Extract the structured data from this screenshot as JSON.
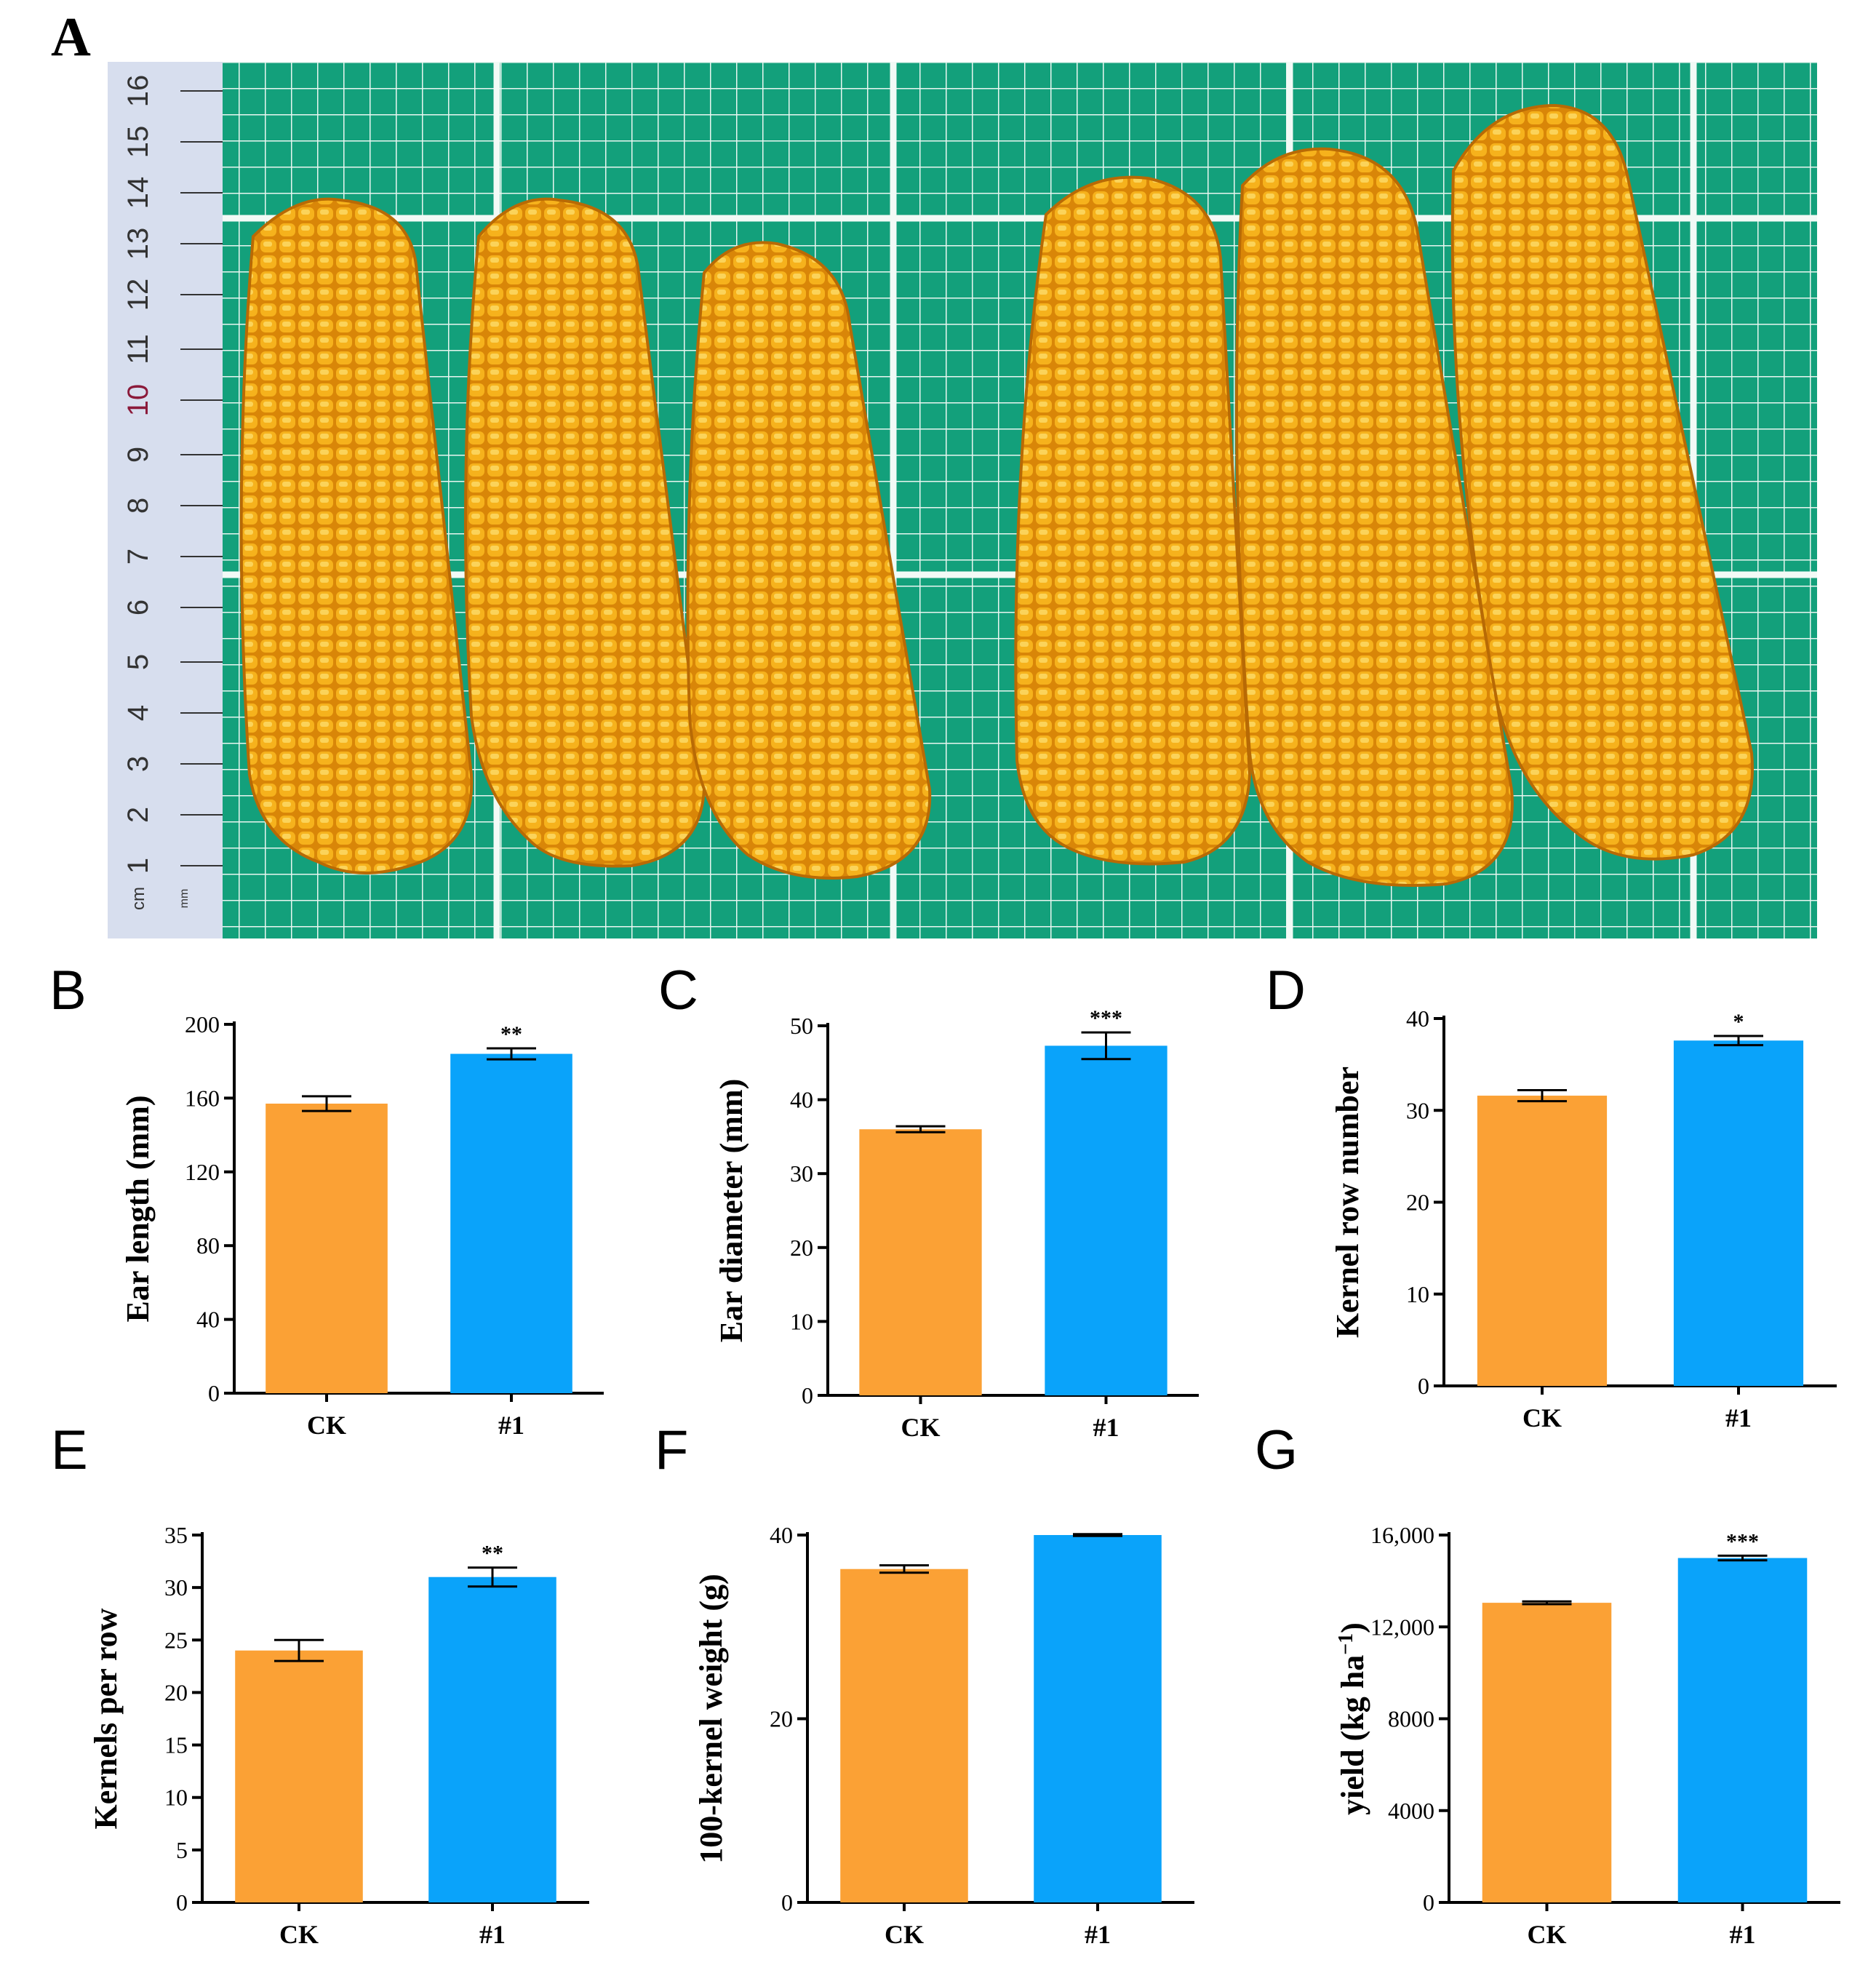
{
  "figure": {
    "panel_a": {
      "letter": "A",
      "photo_description_icon": "corn-ears-photo-icon",
      "ruler_numbers": [
        "1",
        "2",
        "3",
        "4",
        "5",
        "6",
        "7",
        "8",
        "9",
        "10",
        "11",
        "12",
        "13",
        "14",
        "15",
        "16"
      ],
      "ruler_unit_cm": "cm",
      "ruler_unit_mm": "mm"
    }
  },
  "colors": {
    "ck": "#FBA135",
    "line1": "#0AA3FA",
    "grid_bg": "#14A07A",
    "kernel": "#F2A416"
  },
  "chart_data": [
    {
      "panel": "B",
      "type": "bar",
      "categories": [
        "CK",
        "#1"
      ],
      "values": [
        157,
        184
      ],
      "errors": [
        4,
        3
      ],
      "ylabel": "Ear length (mm)",
      "ylim": [
        0,
        200
      ],
      "yticks": [
        "0",
        "40",
        "80",
        "120",
        "160",
        "200"
      ],
      "ytick_values": [
        0,
        40,
        80,
        120,
        160,
        200
      ],
      "significance": [
        "",
        "**"
      ]
    },
    {
      "panel": "C",
      "type": "bar",
      "categories": [
        "CK",
        "#1"
      ],
      "values": [
        36,
        47.3
      ],
      "errors": [
        0.4,
        1.8
      ],
      "ylabel": "Ear diameter (mm)",
      "ylim": [
        0,
        50
      ],
      "yticks": [
        "0",
        "10",
        "20",
        "30",
        "40",
        "50"
      ],
      "ytick_values": [
        0,
        10,
        20,
        30,
        40,
        50
      ],
      "significance": [
        "",
        "***"
      ]
    },
    {
      "panel": "D",
      "type": "bar",
      "categories": [
        "CK",
        "#1"
      ],
      "values": [
        31.6,
        37.6
      ],
      "errors": [
        0.6,
        0.5
      ],
      "ylabel": "Kernel row number",
      "ylim": [
        0,
        40
      ],
      "yticks": [
        "0",
        "10",
        "20",
        "30",
        "40"
      ],
      "ytick_values": [
        0,
        10,
        20,
        30,
        40
      ],
      "significance": [
        "",
        "*"
      ]
    },
    {
      "panel": "E",
      "type": "bar",
      "categories": [
        "CK",
        "#1"
      ],
      "values": [
        24,
        31
      ],
      "errors": [
        1,
        0.9
      ],
      "ylabel": "Kernels per row",
      "ylim": [
        0,
        35
      ],
      "yticks": [
        "0",
        "5",
        "10",
        "15",
        "20",
        "25",
        "30",
        "35"
      ],
      "ytick_values": [
        0,
        5,
        10,
        15,
        20,
        25,
        30,
        35
      ],
      "significance": [
        "",
        "**"
      ]
    },
    {
      "panel": "F",
      "type": "bar",
      "categories": [
        "CK",
        "#1"
      ],
      "values": [
        36.3,
        40
      ],
      "errors": [
        0.4,
        0.1
      ],
      "ylabel": "100-kernel weight (g)",
      "ylim": [
        0,
        40
      ],
      "yticks": [
        "0",
        "20",
        "40"
      ],
      "ytick_values": [
        0,
        20,
        40
      ],
      "significance": [
        "",
        ""
      ]
    },
    {
      "panel": "G",
      "type": "bar",
      "categories": [
        "CK",
        "#1"
      ],
      "values": [
        13050,
        15000
      ],
      "errors": [
        60,
        100
      ],
      "ylabel": "yield (kg ha",
      "ylabel_sup": "−1",
      "ylabel_close": ")",
      "ylim": [
        0,
        16000
      ],
      "yticks": [
        "0",
        "4000",
        "8000",
        "12,000",
        "16,000"
      ],
      "ytick_values": [
        0,
        4000,
        8000,
        12000,
        16000
      ],
      "significance": [
        "",
        "***"
      ]
    }
  ]
}
